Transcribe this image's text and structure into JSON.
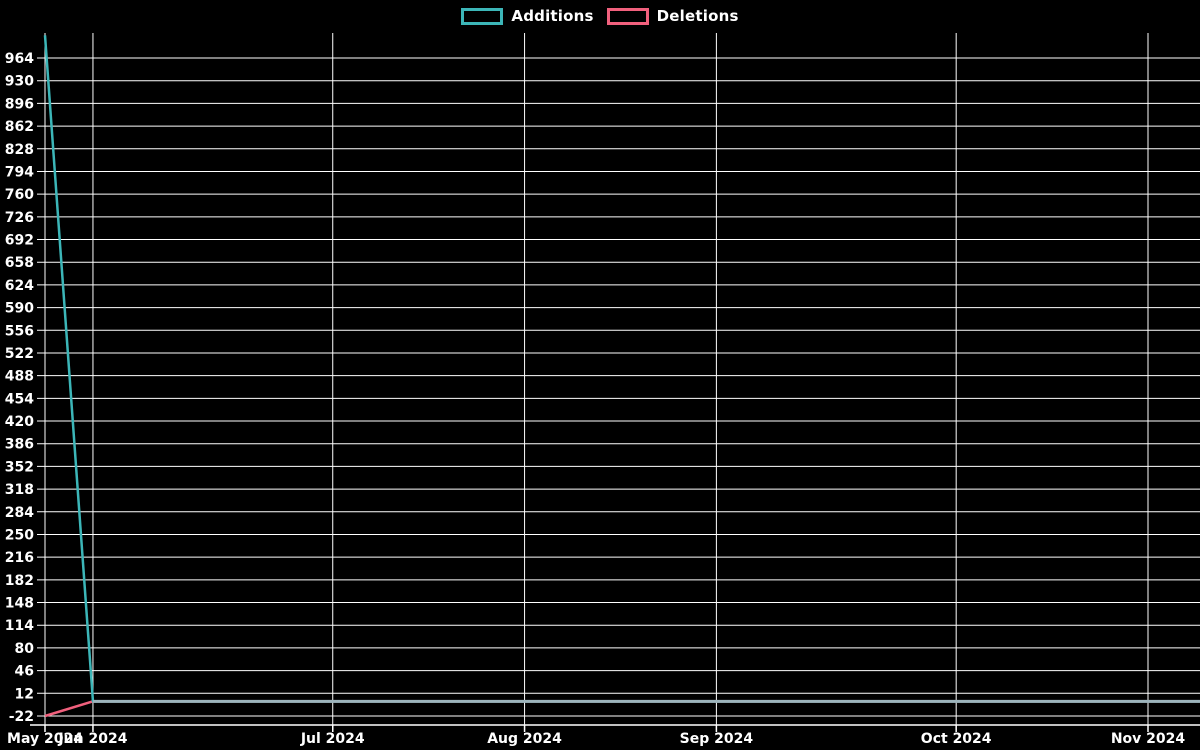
{
  "colors": {
    "background": "#000000",
    "grid": "#ffffff",
    "axis": "#ffffff",
    "text": "#ffffff",
    "additions": "#3cb6b8",
    "deletions": "#f1607d",
    "overlap_blend": "#9db4bc"
  },
  "legend": {
    "items": [
      {
        "label": "Additions",
        "swatch": "additions-swatch"
      },
      {
        "label": "Deletions",
        "swatch": "deletions-swatch"
      }
    ]
  },
  "chart_data": {
    "type": "line",
    "title": "",
    "xlabel": "",
    "ylabel": "",
    "grid": true,
    "legend_position": "top-center",
    "x_unit": "week-index",
    "x_points": 25,
    "xticks": [
      {
        "index": 0,
        "label": "May 2024"
      },
      {
        "index": 1,
        "label": "Jun 2024"
      },
      {
        "index": 6,
        "label": "Jul 2024"
      },
      {
        "index": 10,
        "label": "Aug 2024"
      },
      {
        "index": 14,
        "label": "Sep 2024"
      },
      {
        "index": 19,
        "label": "Oct 2024"
      },
      {
        "index": 23,
        "label": "Nov 2024"
      }
    ],
    "yticks": [
      -22,
      12,
      46,
      80,
      114,
      148,
      182,
      216,
      250,
      284,
      318,
      352,
      386,
      420,
      454,
      488,
      522,
      556,
      590,
      624,
      658,
      692,
      726,
      760,
      794,
      828,
      862,
      896,
      930,
      964
    ],
    "ylim": [
      -22,
      998
    ],
    "series": [
      {
        "name": "Additions",
        "color": "#3cb6b8",
        "values": [
          998,
          0,
          0,
          0,
          0,
          0,
          0,
          0,
          0,
          0,
          0,
          0,
          0,
          0,
          0,
          0,
          0,
          0,
          0,
          0,
          0,
          0,
          0,
          0,
          0
        ]
      },
      {
        "name": "Deletions",
        "color": "#f1607d",
        "values": [
          -22,
          0,
          0,
          0,
          0,
          0,
          0,
          0,
          0,
          0,
          0,
          0,
          0,
          0,
          0,
          0,
          0,
          0,
          0,
          0,
          0,
          0,
          0,
          0,
          0
        ]
      }
    ]
  }
}
